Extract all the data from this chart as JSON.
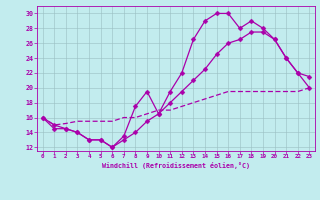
{
  "xlabel": "Windchill (Refroidissement éolien,°C)",
  "background_color": "#c2ecee",
  "grid_color": "#b0d8dc",
  "line_color": "#aa00aa",
  "xlim": [
    -0.5,
    23.5
  ],
  "ylim": [
    11.5,
    31.0
  ],
  "xticks": [
    0,
    1,
    2,
    3,
    4,
    5,
    6,
    7,
    8,
    9,
    10,
    11,
    12,
    13,
    14,
    15,
    16,
    17,
    18,
    19,
    20,
    21,
    22,
    23
  ],
  "yticks": [
    12,
    14,
    16,
    18,
    20,
    22,
    24,
    26,
    28,
    30
  ],
  "line1_x": [
    0,
    1,
    2,
    3,
    4,
    5,
    6,
    7,
    8,
    9,
    10,
    11,
    12,
    13,
    14,
    15,
    16,
    17,
    18,
    19,
    20,
    21,
    22,
    23
  ],
  "line1_y": [
    16.0,
    15.0,
    14.5,
    14.0,
    13.0,
    13.0,
    12.0,
    13.5,
    17.5,
    19.5,
    16.5,
    19.5,
    22.0,
    26.5,
    29.0,
    30.0,
    30.0,
    28.0,
    29.0,
    28.0,
    26.5,
    24.0,
    22.0,
    21.5
  ],
  "line2_x": [
    0,
    1,
    2,
    3,
    4,
    5,
    6,
    7,
    8,
    9,
    10,
    11,
    12,
    13,
    14,
    15,
    16,
    17,
    18,
    19,
    20,
    21,
    22,
    23
  ],
  "line2_y": [
    16.0,
    14.5,
    14.5,
    14.0,
    13.0,
    13.0,
    12.0,
    13.0,
    14.0,
    15.5,
    16.5,
    18.0,
    19.5,
    21.0,
    22.5,
    24.5,
    26.0,
    26.5,
    27.5,
    27.5,
    26.5,
    24.0,
    22.0,
    20.0
  ],
  "line3_x": [
    0,
    1,
    2,
    3,
    4,
    5,
    6,
    7,
    8,
    9,
    10,
    11,
    12,
    13,
    14,
    15,
    16,
    17,
    18,
    19,
    20,
    21,
    22,
    23
  ],
  "line3_y": [
    16.0,
    15.0,
    15.2,
    15.5,
    15.5,
    15.5,
    15.5,
    16.0,
    16.0,
    16.5,
    17.0,
    17.0,
    17.5,
    18.0,
    18.5,
    19.0,
    19.5,
    19.5,
    19.5,
    19.5,
    19.5,
    19.5,
    19.5,
    20.0
  ],
  "marker_size": 2.5,
  "linewidth": 0.9
}
